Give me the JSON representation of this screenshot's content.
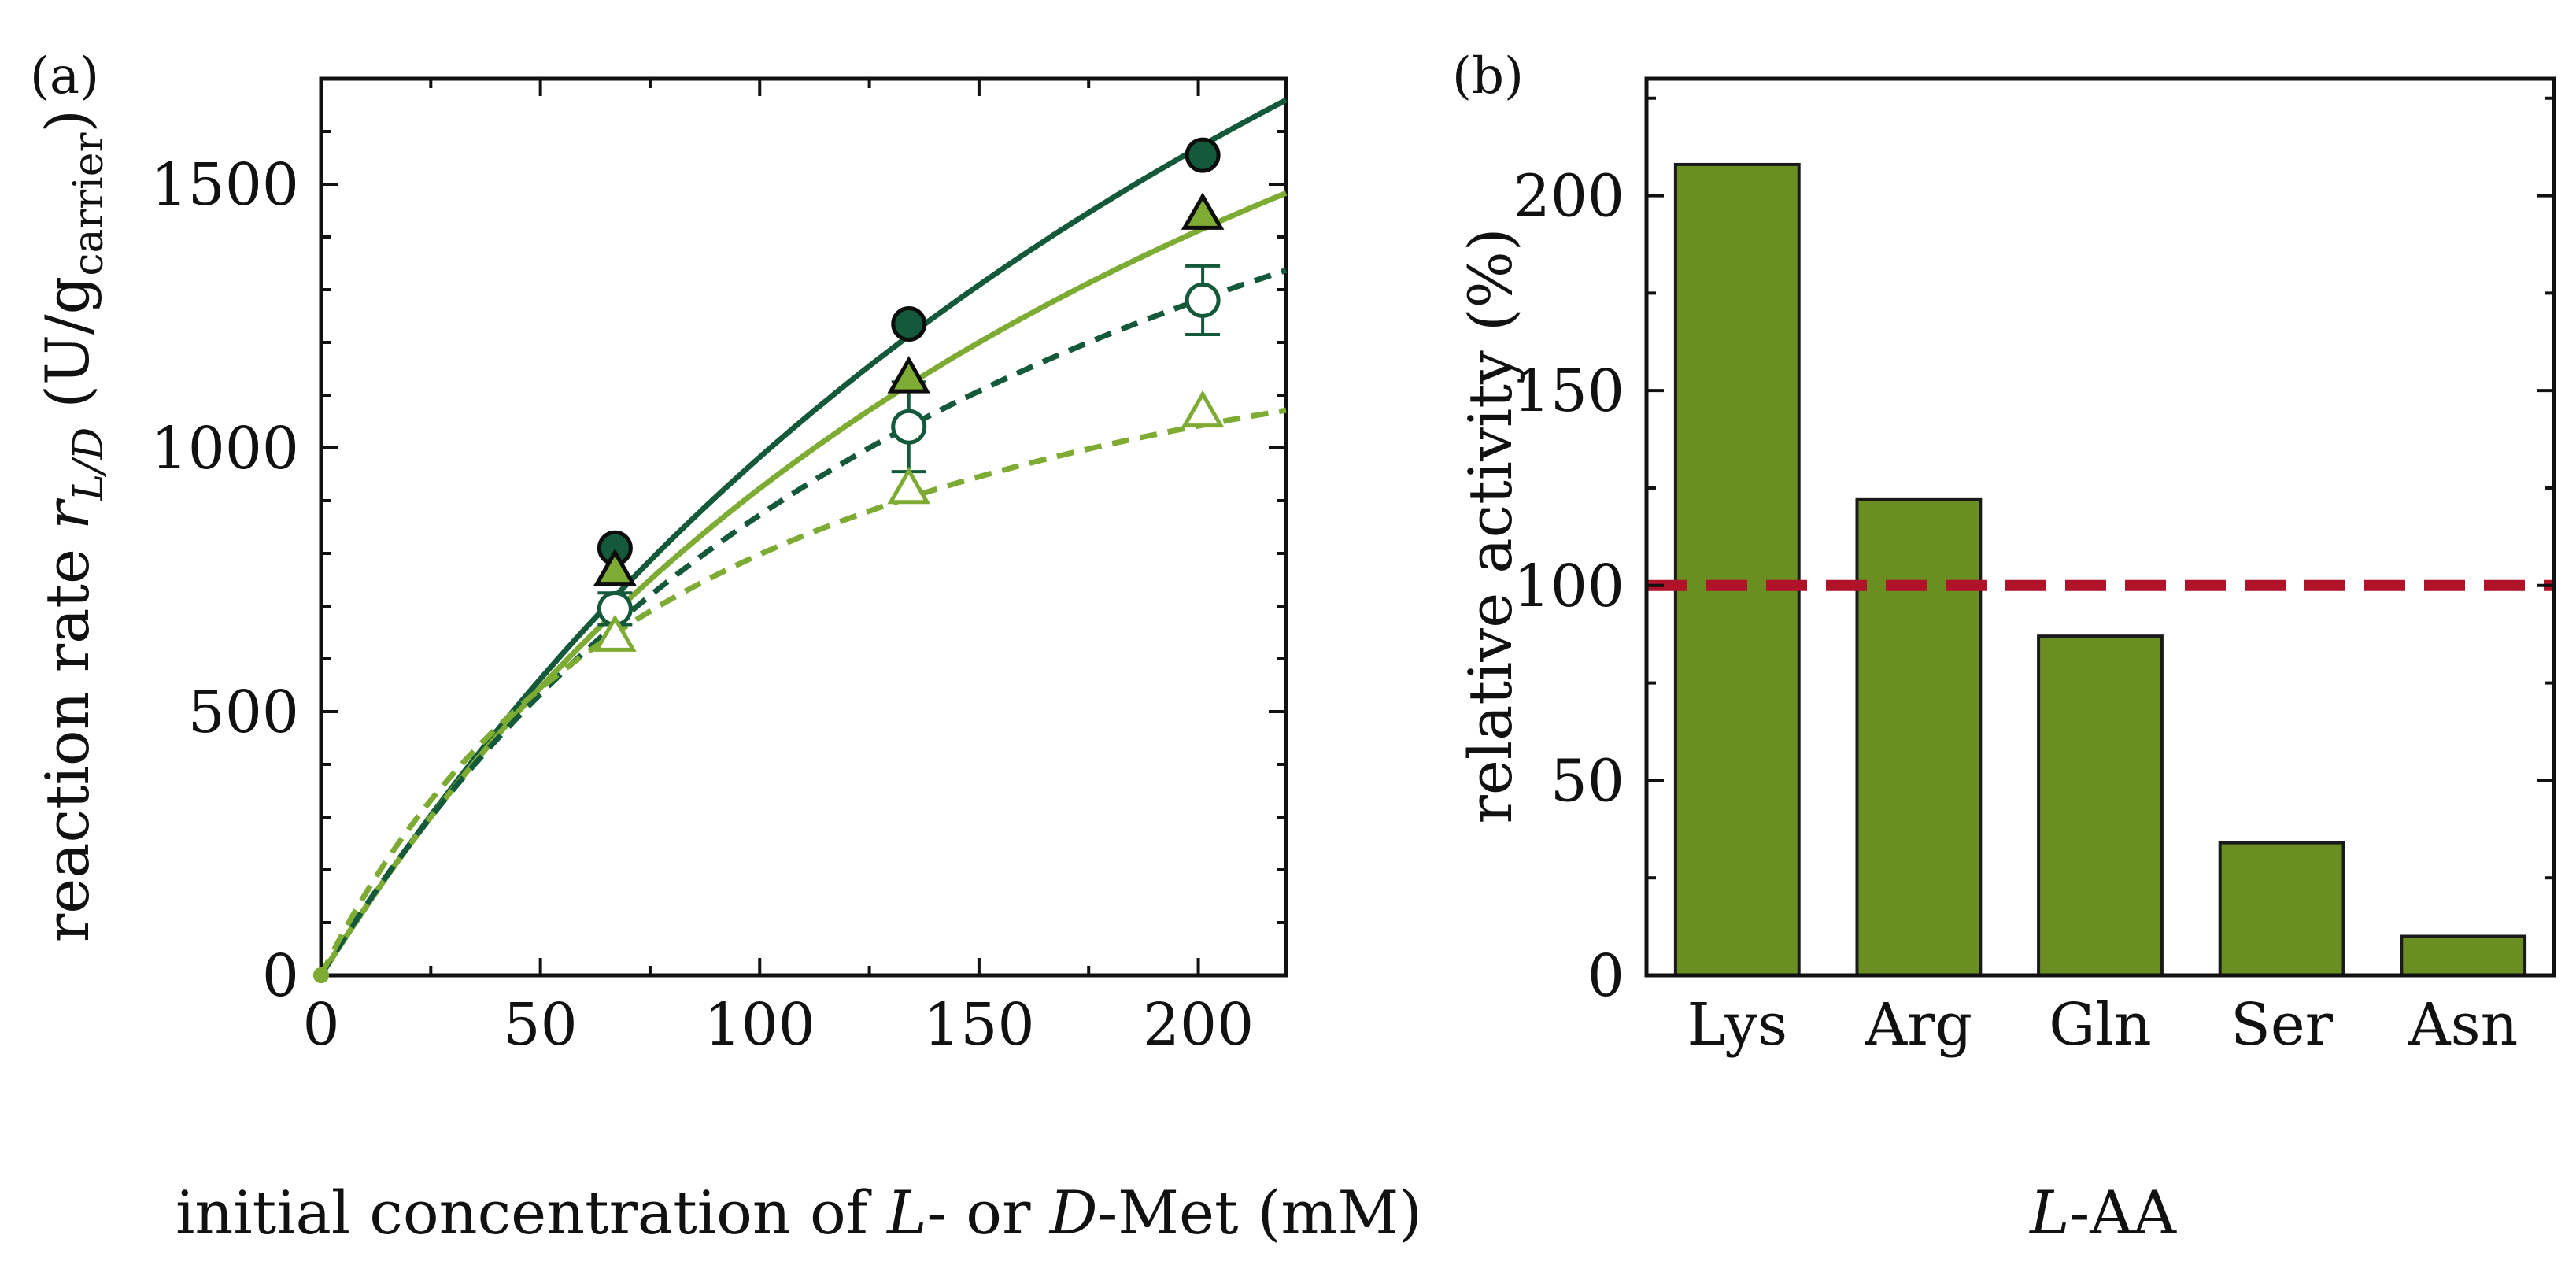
{
  "colors": {
    "dark_green": "#14593a",
    "light_green": "#7dab33",
    "bar_fill": "#6b8e23",
    "bar_edge": "#1a1a1a",
    "reference_line": "#b0122a"
  },
  "chart_data": [
    {
      "panel": "(a)",
      "type": "scatter",
      "xlabel": {
        "prefix": "initial concentration of ",
        "l": "L",
        "mid": "- or ",
        "d": "D",
        "suffix": "-Met (mM)"
      },
      "ylabel": {
        "prefix": "reaction rate ",
        "r": "r",
        "r_sub": "L/D",
        "open": " (U/g",
        "g_sub": "carrier",
        "close": ")"
      },
      "xlim": [
        0,
        220
      ],
      "ylim": [
        0,
        1700
      ],
      "xticks": [
        0,
        50,
        100,
        150,
        200
      ],
      "yticks": [
        0,
        500,
        1000,
        1500
      ],
      "series": [
        {
          "marker": "circle",
          "filled": true,
          "color": "dark_green",
          "line": "solid",
          "x": [
            0,
            67,
            134,
            201
          ],
          "y": [
            0,
            810,
            1235,
            1555
          ],
          "err": [
            0,
            0,
            0,
            0
          ],
          "fit": {
            "vmax": 3900,
            "km": 297
          }
        },
        {
          "marker": "triangle",
          "filled": true,
          "color": "light_green",
          "line": "solid",
          "x": [
            0,
            67,
            134,
            201
          ],
          "y": [
            0,
            765,
            1130,
            1440
          ],
          "err": [
            0,
            0,
            0,
            0
          ],
          "fit": {
            "vmax": 3000,
            "km": 225
          }
        },
        {
          "marker": "circle",
          "filled": false,
          "color": "dark_green",
          "line": "dashed",
          "x": [
            0,
            67,
            134,
            201
          ],
          "y": [
            0,
            695,
            1040,
            1280
          ],
          "err": [
            0,
            30,
            85,
            65
          ],
          "fit": {
            "vmax": 2400,
            "km": 175
          }
        },
        {
          "marker": "triangle",
          "filled": false,
          "color": "light_green",
          "line": "dashed",
          "x": [
            0,
            67,
            134,
            201
          ],
          "y": [
            0,
            640,
            920,
            1065
          ],
          "err": [
            0,
            0,
            0,
            0
          ],
          "fit": {
            "vmax": 1500,
            "km": 88
          }
        }
      ]
    },
    {
      "panel": "(b)",
      "type": "bar",
      "xlabel": {
        "l": "L",
        "suffix": "-AA"
      },
      "ylabel": "relative activity (%)",
      "categories": [
        "Lys",
        "Arg",
        "Gln",
        "Ser",
        "Asn"
      ],
      "values": [
        208,
        122,
        87,
        34,
        10
      ],
      "ylim": [
        0,
        230
      ],
      "yticks": [
        0,
        50,
        100,
        150,
        200
      ],
      "reference_line": 100
    }
  ]
}
